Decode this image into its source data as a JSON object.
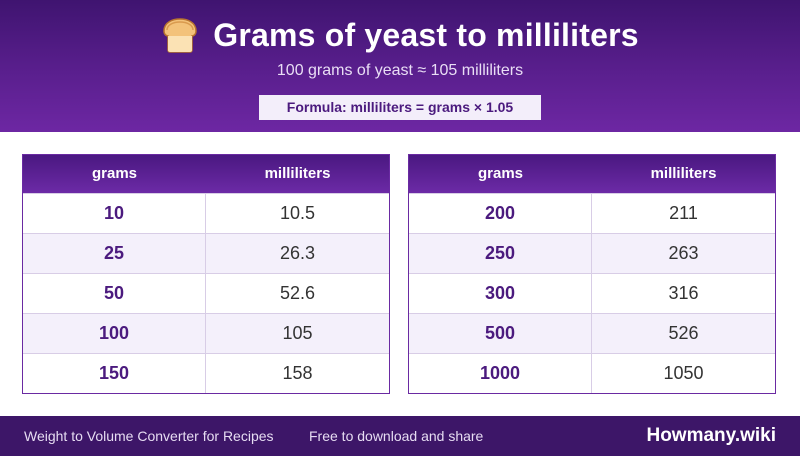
{
  "header": {
    "title": "Grams of yeast to milliliters",
    "subtitle": "100 grams of yeast ≈ 105 milliliters",
    "formula": "Formula: milliliters = grams × 1.05",
    "icon": "bread-icon"
  },
  "tables": {
    "left": {
      "headers": [
        "grams",
        "milliliters"
      ],
      "rows": [
        {
          "grams": "10",
          "ml": "10.5"
        },
        {
          "grams": "25",
          "ml": "26.3"
        },
        {
          "grams": "50",
          "ml": "52.6"
        },
        {
          "grams": "100",
          "ml": "105"
        },
        {
          "grams": "150",
          "ml": "158"
        }
      ]
    },
    "right": {
      "headers": [
        "grams",
        "milliliters"
      ],
      "rows": [
        {
          "grams": "200",
          "ml": "211"
        },
        {
          "grams": "250",
          "ml": "263"
        },
        {
          "grams": "300",
          "ml": "316"
        },
        {
          "grams": "500",
          "ml": "526"
        },
        {
          "grams": "1000",
          "ml": "1050"
        }
      ]
    }
  },
  "footer": {
    "left_text": "Weight to Volume Converter for Recipes",
    "middle_text": "Free to download and share",
    "brand": "Howmany.wiki"
  },
  "colors": {
    "header_purple": "#5a1f8e",
    "footer_purple": "#3d1668",
    "accent_text": "#4b1a7e"
  }
}
